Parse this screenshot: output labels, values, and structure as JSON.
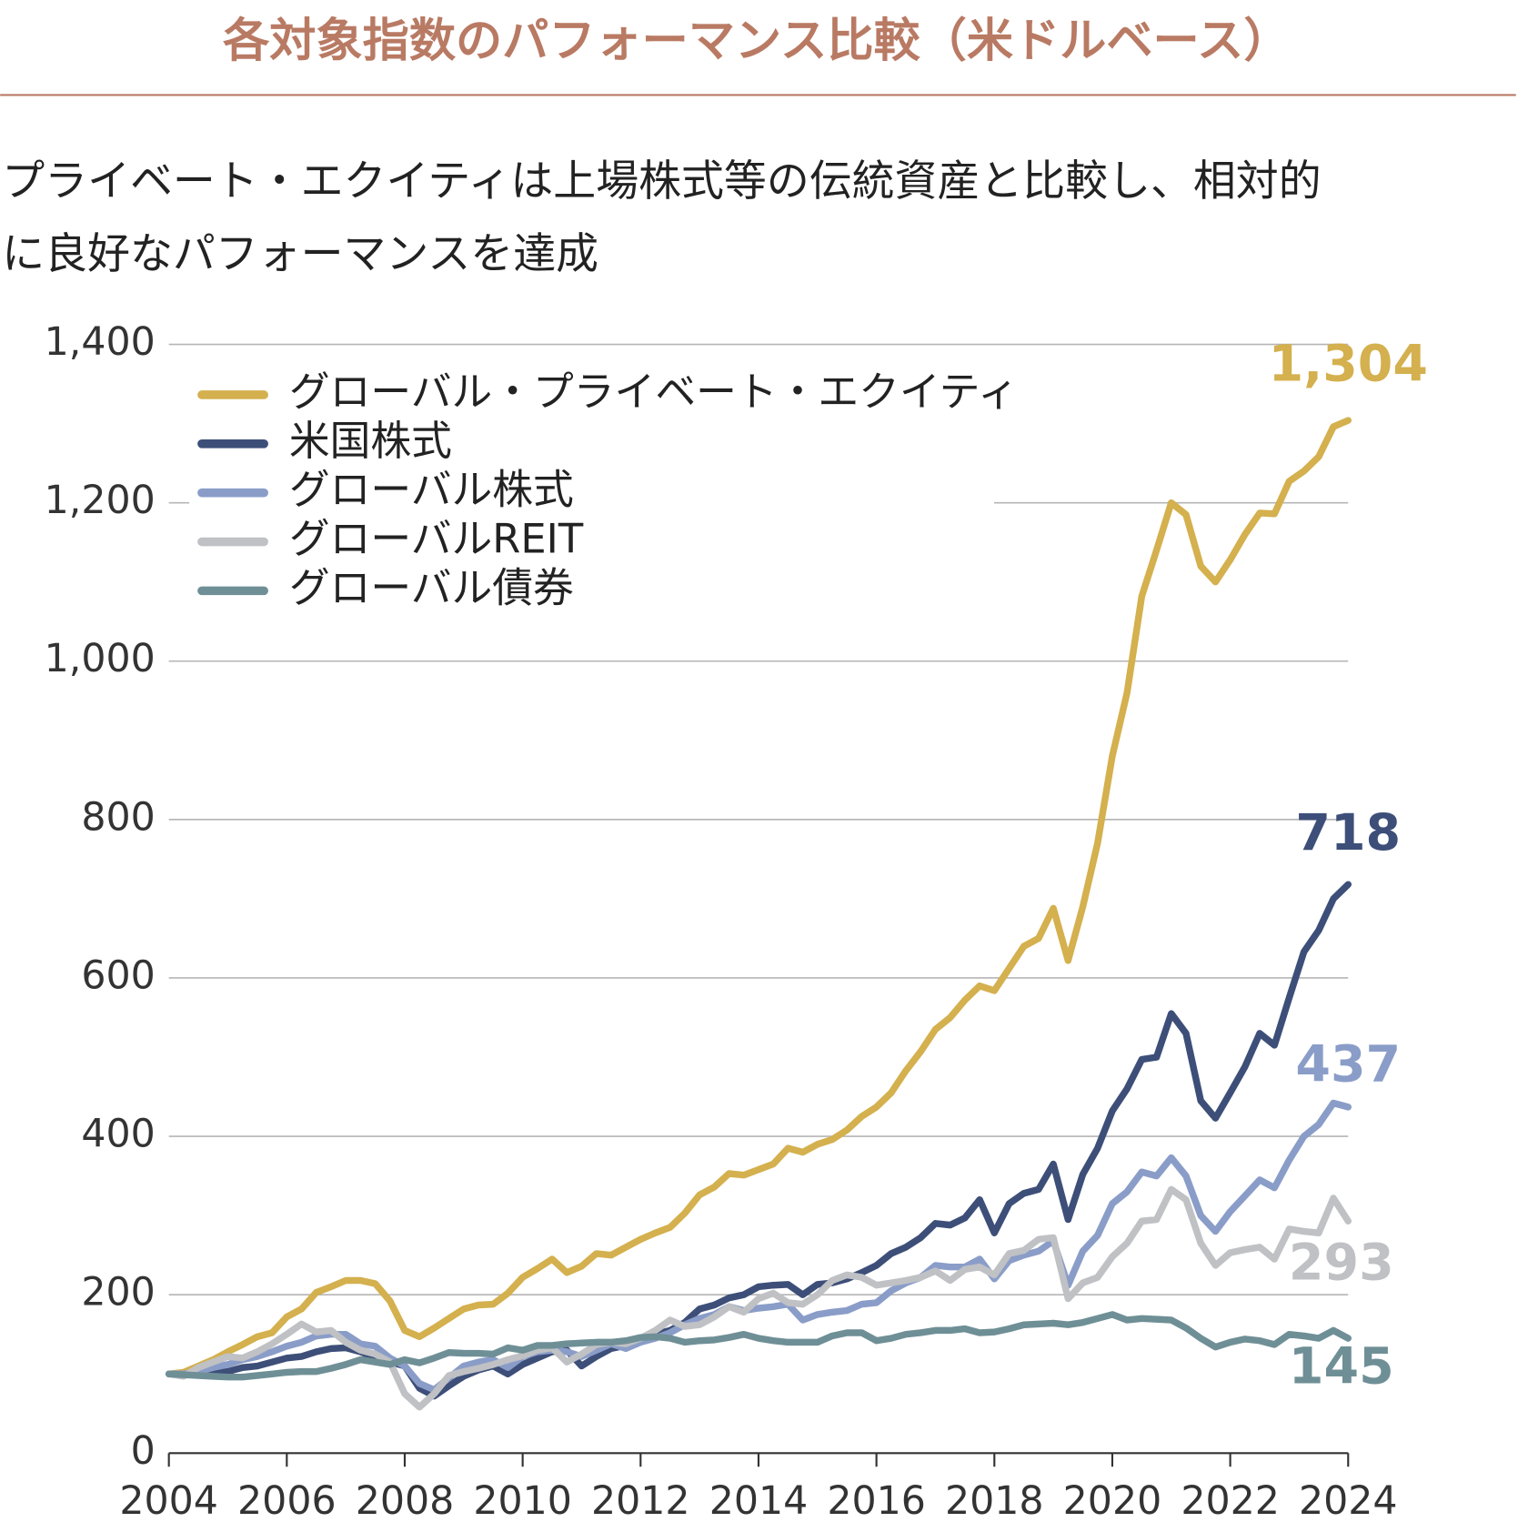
{
  "chart_data": {
    "type": "line",
    "title": "各対象指数のパフォーマンス比較（米ドルベース）",
    "subtitle": [
      "プライベート・エクイティは上場株式等の伝統資産と比較し、相対的",
      "に良好なパフォーマンスを達成"
    ],
    "legend": "upper left",
    "grid": true,
    "xlim": [
      2004,
      2024
    ],
    "xticks": [
      2004,
      2006,
      2008,
      2010,
      2012,
      2014,
      2016,
      2018,
      2020,
      2022,
      2024
    ],
    "ylim": [
      0,
      1400
    ],
    "yticks": [
      0,
      200,
      400,
      600,
      800,
      {
        "value": 1000,
        "label": "1,000"
      },
      {
        "value": 1200,
        "label": "1,200"
      },
      {
        "value": 1400,
        "label": "1,400"
      }
    ],
    "x": [
      2004,
      2004.25,
      2004.5,
      2004.75,
      2005,
      2005.25,
      2005.5,
      2005.75,
      2006,
      2006.25,
      2006.5,
      2006.75,
      2007,
      2007.25,
      2007.5,
      2007.75,
      2008,
      2008.25,
      2008.5,
      2008.75,
      2009,
      2009.25,
      2009.5,
      2009.75,
      2010,
      2010.25,
      2010.5,
      2010.75,
      2011,
      2011.25,
      2011.5,
      2011.75,
      2012,
      2012.25,
      2012.5,
      2012.75,
      2013,
      2013.25,
      2013.5,
      2013.75,
      2014,
      2014.25,
      2014.5,
      2014.75,
      2015,
      2015.25,
      2015.5,
      2015.75,
      2016,
      2016.25,
      2016.5,
      2016.75,
      2017,
      2017.25,
      2017.5,
      2017.75,
      2018,
      2018.25,
      2018.5,
      2018.75,
      2019,
      2019.25,
      2019.5,
      2019.75,
      2020,
      2020.25,
      2020.5,
      2020.75,
      2021,
      2021.25,
      2021.5,
      2021.75,
      2022,
      2022.25,
      2022.5,
      2022.75,
      2023,
      2023.25,
      2023.5,
      2023.75,
      2024
    ],
    "series": [
      {
        "name": "グローバル・プライベート・エクイティ",
        "color": "#d4b04e",
        "values": [
          100,
          102,
          110,
          118,
          128,
          137,
          147,
          152,
          172,
          182,
          203,
          210,
          218,
          218,
          214,
          192,
          155,
          147,
          158,
          170,
          182,
          187,
          188,
          202,
          222,
          233,
          245,
          228,
          236,
          252,
          250,
          260,
          270,
          278,
          285,
          303,
          326,
          336,
          353,
          351,
          358,
          365,
          385,
          380,
          390,
          396,
          408,
          425,
          437,
          455,
          483,
          507,
          535,
          550,
          572,
          590,
          584,
          612,
          640,
          650,
          688,
          622,
          690,
          770,
          880,
          960,
          1082,
          1140,
          1200,
          1185,
          1120,
          1100,
          1128,
          1160,
          1187,
          1186,
          1227,
          1240,
          1258,
          1296,
          1304
        ],
        "value_labels": [
          null,
          null,
          null,
          null,
          null,
          null,
          null,
          null,
          null,
          null,
          null,
          null,
          null,
          null,
          null,
          null,
          null,
          null,
          null,
          null,
          null,
          null,
          null,
          null,
          null,
          null,
          null,
          null,
          null,
          null,
          null,
          null,
          null,
          null,
          null,
          null,
          null,
          null,
          null,
          null,
          null,
          null,
          null,
          null,
          null,
          null,
          null,
          null,
          null,
          null,
          null,
          null,
          null,
          null,
          null,
          null,
          null,
          null,
          null,
          null,
          null,
          null,
          null,
          null,
          null,
          null,
          null,
          null,
          null,
          null,
          null,
          null,
          null,
          null,
          null,
          null,
          null,
          null,
          null,
          null,
          "1,304"
        ]
      },
      {
        "name": "米国株式",
        "color": "#3d4f78",
        "values": [
          100,
          100,
          100,
          101,
          103,
          108,
          110,
          115,
          120,
          122,
          128,
          132,
          133,
          128,
          120,
          115,
          110,
          82,
          72,
          85,
          97,
          105,
          110,
          100,
          112,
          120,
          128,
          130,
          110,
          122,
          132,
          136,
          142,
          150,
          155,
          165,
          182,
          187,
          196,
          200,
          210,
          212,
          213,
          200,
          213,
          215,
          220,
          228,
          237,
          252,
          260,
          272,
          290,
          288,
          297,
          320,
          278,
          315,
          328,
          333,
          365,
          295,
          352,
          385,
          432,
          460,
          497,
          500,
          555,
          530,
          445,
          423,
          455,
          488,
          530,
          515,
          575,
          633,
          660,
          700,
          718
        ]
      },
      {
        "name": "グローバル株式",
        "color": "#8a9dc8",
        "values": [
          100,
          100,
          103,
          108,
          112,
          118,
          122,
          128,
          135,
          140,
          148,
          150,
          150,
          138,
          135,
          120,
          110,
          88,
          80,
          95,
          110,
          115,
          118,
          108,
          122,
          128,
          130,
          128,
          122,
          130,
          138,
          132,
          140,
          145,
          152,
          162,
          170,
          175,
          185,
          180,
          183,
          185,
          188,
          168,
          175,
          178,
          180,
          188,
          190,
          205,
          215,
          222,
          237,
          235,
          235,
          245,
          220,
          243,
          250,
          255,
          268,
          212,
          255,
          275,
          315,
          330,
          355,
          350,
          373,
          350,
          300,
          280,
          305,
          325,
          345,
          335,
          370,
          400,
          415,
          442,
          437
        ]
      },
      {
        "name": "グローバルREIT",
        "color": "#bfc1c4",
        "values": [
          100,
          97,
          108,
          115,
          122,
          120,
          128,
          138,
          150,
          163,
          153,
          155,
          140,
          130,
          125,
          115,
          75,
          58,
          75,
          98,
          103,
          107,
          112,
          118,
          123,
          130,
          133,
          115,
          125,
          137,
          140,
          138,
          145,
          155,
          168,
          160,
          162,
          172,
          185,
          178,
          195,
          202,
          190,
          188,
          200,
          218,
          225,
          222,
          212,
          215,
          218,
          222,
          230,
          218,
          232,
          235,
          225,
          252,
          256,
          270,
          272,
          195,
          215,
          222,
          248,
          265,
          293,
          295,
          333,
          320,
          265,
          237,
          253,
          257,
          260,
          245,
          283,
          280,
          278,
          322,
          293
        ]
      },
      {
        "name": "グローバル債券",
        "color": "#6f8f96",
        "values": [
          100,
          99,
          98,
          97,
          96,
          96,
          98,
          100,
          102,
          103,
          103,
          107,
          112,
          118,
          115,
          112,
          118,
          114,
          120,
          127,
          126,
          126,
          125,
          133,
          130,
          136,
          136,
          138,
          139,
          140,
          140,
          142,
          146,
          147,
          145,
          140,
          142,
          143,
          146,
          150,
          145,
          142,
          140,
          140,
          140,
          148,
          152,
          152,
          142,
          145,
          150,
          152,
          155,
          155,
          157,
          152,
          153,
          157,
          162,
          163,
          164,
          162,
          165,
          170,
          175,
          168,
          170,
          169,
          168,
          158,
          145,
          134,
          140,
          144,
          142,
          137,
          150,
          148,
          145,
          155,
          145
        ]
      }
    ]
  }
}
